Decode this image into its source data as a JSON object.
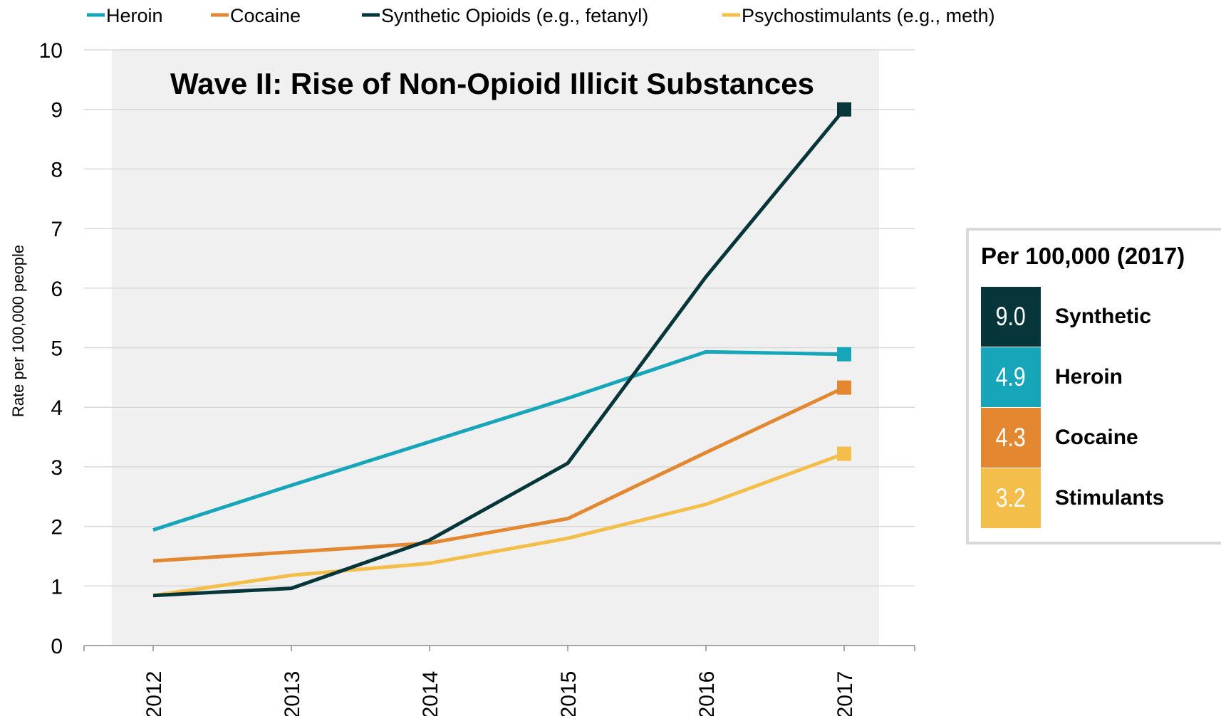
{
  "chart_data": {
    "type": "line",
    "title": "Wave II: Rise of Non-Opioid Illicit Substances",
    "xlabel": "",
    "ylabel": "Rate per 100,000 people",
    "ylim": [
      0,
      10
    ],
    "yticks": [
      "0",
      "1",
      "2",
      "3",
      "4",
      "5",
      "6",
      "7",
      "8",
      "9",
      "10"
    ],
    "categories": [
      "2012",
      "2013",
      "2014",
      "2015",
      "2016",
      "2017"
    ],
    "grid": "horizontal",
    "legend_position": "top",
    "series": [
      {
        "name": "Heroin",
        "color": "#17a6b9",
        "values": [
          1.94,
          2.69,
          3.42,
          4.15,
          4.93,
          4.89
        ]
      },
      {
        "name": "Cocaine",
        "color": "#e38731",
        "values": [
          1.42,
          1.57,
          1.72,
          2.13,
          3.24,
          4.33
        ]
      },
      {
        "name": "Synthetic Opioids (e.g., fetanyl)",
        "color": "#063639",
        "values": [
          0.84,
          0.96,
          1.77,
          3.06,
          6.19,
          9.0
        ]
      },
      {
        "name": "Psychostimulants (e.g., meth)",
        "color": "#f4be4b",
        "values": [
          0.84,
          1.18,
          1.38,
          1.8,
          2.37,
          3.22
        ]
      }
    ],
    "summary": {
      "title": "Per 100,000 (2017)",
      "items": [
        {
          "value": "9.0",
          "label": "Synthetic",
          "color": "#063639"
        },
        {
          "value": "4.9",
          "label": "Heroin",
          "color": "#17a6b9"
        },
        {
          "value": "4.3",
          "label": "Cocaine",
          "color": "#e38731"
        },
        {
          "value": "3.2",
          "label": "Stimulants",
          "color": "#f4be4b"
        }
      ]
    }
  }
}
